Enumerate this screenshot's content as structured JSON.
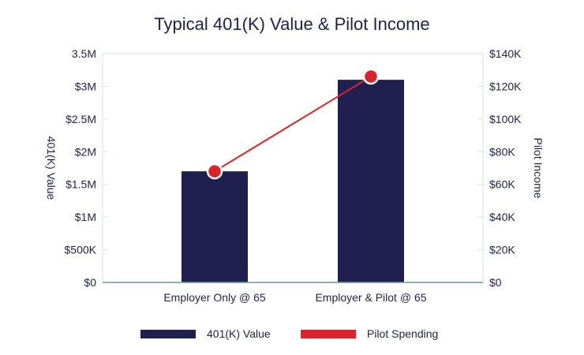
{
  "colors": {
    "bar": "#1f2050",
    "line": "#d9242b",
    "grid": "#d4dfe0",
    "axis": "#6c9a8b",
    "text": "#1f2050"
  },
  "chart_data": {
    "type": "bar",
    "title": "Typical 401(K) Value & Pilot Income",
    "categories": [
      "Employer Only @ 65",
      "Employer & Pilot @ 65"
    ],
    "series": [
      {
        "name": "401(K) Value",
        "type": "bar",
        "axis": "left",
        "values": [
          1700000,
          3100000
        ]
      },
      {
        "name": "Pilot Spending",
        "type": "line",
        "axis": "right",
        "values": [
          68000,
          126000
        ]
      }
    ],
    "ylabel": "401(K) Value",
    "y2label": "Pilot Income",
    "ylim": [
      0,
      3500000
    ],
    "y2lim": [
      0,
      140000
    ],
    "yticks": [
      0,
      500000,
      1000000,
      1500000,
      2000000,
      2500000,
      3000000,
      3500000
    ],
    "ytick_labels": [
      "$0",
      "$500K",
      "$1M",
      "$1.5M",
      "$2M",
      "$2.5M",
      "$3M",
      "3.5M"
    ],
    "y2ticks": [
      0,
      20000,
      40000,
      60000,
      80000,
      100000,
      120000,
      140000
    ],
    "y2tick_labels": [
      "$0",
      "$20K",
      "$40K",
      "$60K",
      "$80K",
      "$100K",
      "$120K",
      "$140K"
    ],
    "grid": true,
    "legend_position": "bottom"
  }
}
